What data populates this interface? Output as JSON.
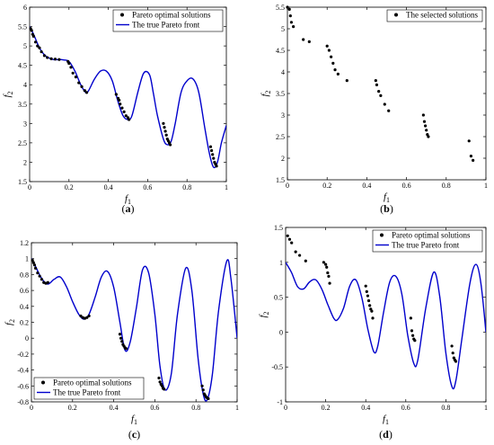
{
  "chart_data": [
    {
      "panel": "a",
      "panel_label": "(a)",
      "type": "line",
      "xlabel": "f1",
      "ylabel": "f2",
      "xlim": [
        0,
        1
      ],
      "ylim": [
        1.5,
        6
      ],
      "xticks": [
        "0",
        "0.2",
        "0.4",
        "0.6",
        "0.8",
        "1"
      ],
      "yticks": [
        "1.5",
        "2",
        "2.5",
        "3",
        "3.5",
        "4",
        "4.5",
        "5",
        "5.5",
        "6"
      ],
      "legend_position": "top-right",
      "series": [
        {
          "name": "The true Pareto front",
          "kind": "line",
          "color": "#0000cc",
          "x": [
            0.0,
            0.02,
            0.05,
            0.08,
            0.12,
            0.15,
            0.17,
            0.2,
            0.23,
            0.26,
            0.285,
            0.3,
            0.33,
            0.36,
            0.39,
            0.42,
            0.45,
            0.475,
            0.5,
            0.52,
            0.55,
            0.58,
            0.61,
            0.63,
            0.65,
            0.68,
            0.7,
            0.72,
            0.74,
            0.77,
            0.8,
            0.83,
            0.86,
            0.89,
            0.915,
            0.935,
            0.955,
            0.975,
            1.0
          ],
          "y": [
            5.5,
            5.3,
            4.95,
            4.75,
            4.65,
            4.65,
            4.64,
            4.6,
            4.35,
            4.0,
            3.8,
            3.85,
            4.15,
            4.35,
            4.35,
            4.1,
            3.55,
            3.2,
            3.1,
            3.2,
            3.8,
            4.3,
            4.25,
            3.75,
            3.2,
            2.6,
            2.45,
            2.55,
            3.0,
            3.8,
            4.1,
            4.15,
            3.8,
            2.9,
            2.2,
            1.87,
            2.0,
            2.5,
            2.95
          ]
        },
        {
          "name": "Pareto optimal solutions",
          "kind": "scatter",
          "color": "#000000",
          "x": [
            0.005,
            0.01,
            0.015,
            0.02,
            0.03,
            0.04,
            0.05,
            0.06,
            0.075,
            0.09,
            0.11,
            0.13,
            0.15,
            0.195,
            0.2,
            0.21,
            0.22,
            0.235,
            0.25,
            0.265,
            0.28,
            0.29,
            0.44,
            0.45,
            0.455,
            0.46,
            0.47,
            0.48,
            0.49,
            0.5,
            0.505,
            0.68,
            0.685,
            0.69,
            0.695,
            0.7,
            0.705,
            0.71,
            0.715,
            0.92,
            0.925,
            0.93,
            0.935,
            0.94,
            0.945,
            0.95
          ],
          "y": [
            5.45,
            5.4,
            5.3,
            5.25,
            5.1,
            5.0,
            4.95,
            4.85,
            4.75,
            4.7,
            4.67,
            4.66,
            4.65,
            4.6,
            4.55,
            4.45,
            4.3,
            4.2,
            4.05,
            3.95,
            3.85,
            3.8,
            3.75,
            3.65,
            3.6,
            3.5,
            3.4,
            3.3,
            3.2,
            3.15,
            3.1,
            3.0,
            2.9,
            2.8,
            2.7,
            2.6,
            2.55,
            2.5,
            2.45,
            2.4,
            2.3,
            2.2,
            2.1,
            2.0,
            1.95,
            1.9
          ]
        }
      ]
    },
    {
      "panel": "b",
      "panel_label": "(b)",
      "type": "scatter",
      "xlabel": "f1",
      "ylabel": "f2",
      "xlim": [
        0,
        1
      ],
      "ylim": [
        1.5,
        5.5
      ],
      "xticks": [
        "0",
        "0.2",
        "0.4",
        "0.6",
        "0.8",
        "1"
      ],
      "yticks": [
        "1.5",
        "2",
        "2.5",
        "3",
        "3.5",
        "4",
        "4.5",
        "5",
        "5.5"
      ],
      "legend_position": "top-right",
      "series": [
        {
          "name": "The selected solutions",
          "kind": "scatter",
          "color": "#000000",
          "x": [
            0.0,
            0.01,
            0.015,
            0.02,
            0.03,
            0.08,
            0.11,
            0.2,
            0.21,
            0.22,
            0.23,
            0.24,
            0.255,
            0.3,
            0.445,
            0.45,
            0.46,
            0.47,
            0.49,
            0.51,
            0.685,
            0.69,
            0.695,
            0.7,
            0.705,
            0.71,
            0.915,
            0.925,
            0.935
          ],
          "y": [
            5.5,
            5.45,
            5.3,
            5.15,
            5.05,
            4.75,
            4.7,
            4.6,
            4.5,
            4.35,
            4.2,
            4.05,
            3.95,
            3.8,
            3.8,
            3.7,
            3.55,
            3.45,
            3.25,
            3.1,
            3.0,
            2.85,
            2.75,
            2.65,
            2.55,
            2.5,
            2.4,
            2.05,
            1.95
          ]
        }
      ]
    },
    {
      "panel": "c",
      "panel_label": "(c)",
      "type": "line",
      "xlabel": "f1",
      "ylabel": "f2",
      "xlim": [
        0,
        1
      ],
      "ylim": [
        -0.8,
        1.2
      ],
      "xticks": [
        "0",
        "0.2",
        "0.4",
        "0.6",
        "0.8",
        "1"
      ],
      "yticks": [
        "-0.8",
        "-0.6",
        "-0.4",
        "-0.2",
        "0",
        "0.2",
        "0.4",
        "0.6",
        "0.8",
        "1",
        "1.2"
      ],
      "legend_position": "bottom-left",
      "series": [
        {
          "name": "The true Pareto front",
          "kind": "line",
          "color": "#0000cc",
          "x": [
            0.0,
            0.02,
            0.05,
            0.08,
            0.11,
            0.14,
            0.17,
            0.2,
            0.23,
            0.255,
            0.28,
            0.31,
            0.34,
            0.37,
            0.4,
            0.43,
            0.455,
            0.48,
            0.51,
            0.54,
            0.57,
            0.6,
            0.625,
            0.65,
            0.68,
            0.71,
            0.75,
            0.78,
            0.81,
            0.835,
            0.855,
            0.88,
            0.91,
            0.95,
            0.97,
            1.0
          ],
          "y": [
            1.0,
            0.9,
            0.75,
            0.68,
            0.74,
            0.77,
            0.65,
            0.46,
            0.3,
            0.24,
            0.3,
            0.52,
            0.77,
            0.84,
            0.64,
            0.2,
            -0.15,
            -0.05,
            0.38,
            0.86,
            0.82,
            0.3,
            -0.35,
            -0.65,
            -0.45,
            0.3,
            0.88,
            0.6,
            -0.25,
            -0.7,
            -0.77,
            -0.45,
            0.35,
            0.97,
            0.75,
            0.0
          ]
        },
        {
          "name": "Pareto optimal solutions",
          "kind": "scatter",
          "color": "#000000",
          "x": [
            0.005,
            0.01,
            0.015,
            0.02,
            0.03,
            0.04,
            0.05,
            0.06,
            0.07,
            0.08,
            0.24,
            0.25,
            0.26,
            0.27,
            0.28,
            0.43,
            0.435,
            0.44,
            0.445,
            0.45,
            0.455,
            0.46,
            0.62,
            0.625,
            0.63,
            0.635,
            0.64,
            0.645,
            0.83,
            0.835,
            0.84,
            0.845,
            0.85,
            0.855,
            0.86
          ],
          "y": [
            0.98,
            0.95,
            0.92,
            0.88,
            0.82,
            0.78,
            0.74,
            0.7,
            0.69,
            0.7,
            0.28,
            0.26,
            0.25,
            0.26,
            0.28,
            0.05,
            0.0,
            -0.04,
            -0.08,
            -0.1,
            -0.12,
            -0.13,
            -0.5,
            -0.55,
            -0.58,
            -0.6,
            -0.63,
            -0.64,
            -0.6,
            -0.65,
            -0.7,
            -0.72,
            -0.74,
            -0.75,
            -0.76
          ]
        }
      ]
    },
    {
      "panel": "d",
      "panel_label": "(d)",
      "type": "line",
      "xlabel": "f1",
      "ylabel": "f2",
      "xlim": [
        0,
        1
      ],
      "ylim": [
        -1,
        1.5
      ],
      "xticks": [
        "0",
        "0.2",
        "0.4",
        "0.6",
        "0.8",
        "1"
      ],
      "yticks": [
        "-1",
        "-0.5",
        "0",
        "0.5",
        "1",
        "1.5"
      ],
      "legend_position": "top-right",
      "series": [
        {
          "name": "The true Pareto front",
          "kind": "line",
          "color": "#0000cc",
          "x": [
            0.0,
            0.03,
            0.06,
            0.09,
            0.12,
            0.15,
            0.18,
            0.21,
            0.24,
            0.26,
            0.29,
            0.32,
            0.35,
            0.38,
            0.41,
            0.44,
            0.46,
            0.49,
            0.52,
            0.55,
            0.58,
            0.61,
            0.64,
            0.66,
            0.7,
            0.74,
            0.77,
            0.8,
            0.83,
            0.85,
            0.88,
            0.92,
            0.95,
            0.975,
            1.0
          ],
          "y": [
            1.0,
            0.85,
            0.65,
            0.62,
            0.72,
            0.75,
            0.62,
            0.4,
            0.2,
            0.18,
            0.35,
            0.66,
            0.75,
            0.5,
            0.05,
            -0.28,
            -0.2,
            0.3,
            0.72,
            0.8,
            0.55,
            -0.05,
            -0.45,
            -0.4,
            0.35,
            0.86,
            0.5,
            -0.3,
            -0.78,
            -0.7,
            -0.1,
            0.7,
            0.97,
            0.7,
            0.0
          ]
        },
        {
          "name": "Pareto optimal solutions",
          "kind": "scatter",
          "color": "#000000",
          "x": [
            0.01,
            0.02,
            0.03,
            0.05,
            0.07,
            0.1,
            0.19,
            0.2,
            0.205,
            0.21,
            0.215,
            0.22,
            0.4,
            0.405,
            0.41,
            0.415,
            0.42,
            0.425,
            0.43,
            0.435,
            0.625,
            0.63,
            0.635,
            0.64,
            0.645,
            0.83,
            0.835,
            0.84,
            0.845,
            0.85
          ],
          "y": [
            1.38,
            1.33,
            1.28,
            1.15,
            1.1,
            1.02,
            1.0,
            0.97,
            0.93,
            0.85,
            0.8,
            0.7,
            0.66,
            0.58,
            0.52,
            0.45,
            0.38,
            0.33,
            0.3,
            0.2,
            0.2,
            0.02,
            -0.05,
            -0.1,
            -0.12,
            -0.2,
            -0.3,
            -0.37,
            -0.4,
            -0.42
          ]
        }
      ]
    }
  ]
}
